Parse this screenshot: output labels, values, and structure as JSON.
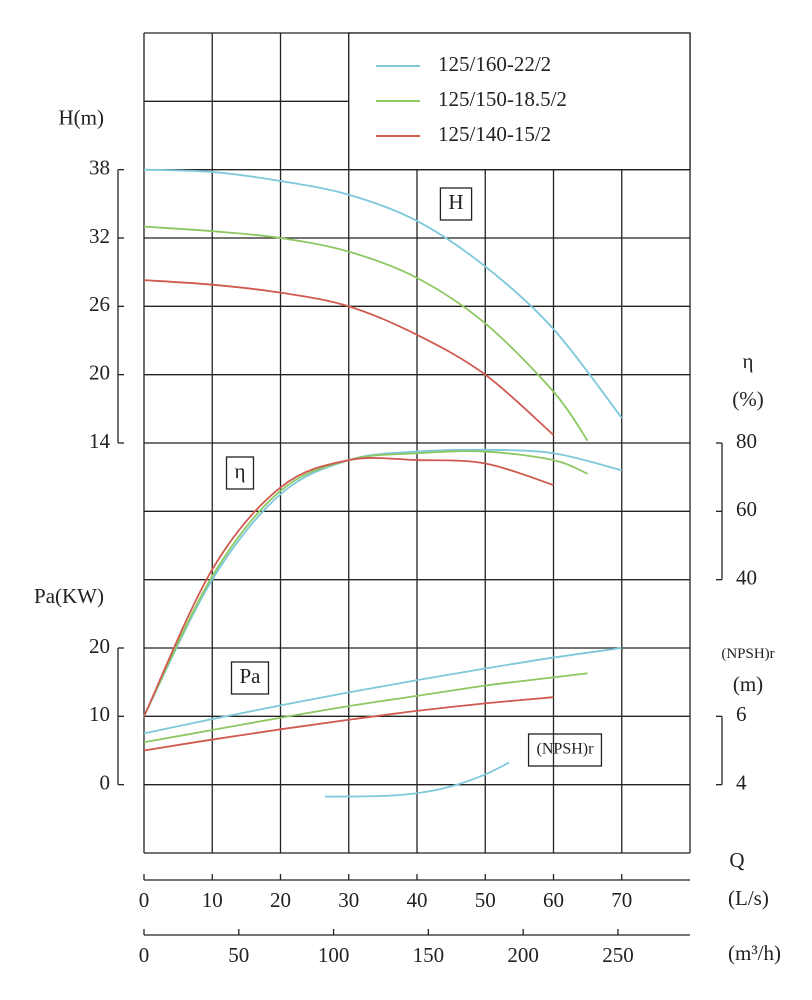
{
  "chart_data": {
    "type": "line",
    "x_axis": {
      "label": "Q",
      "unit": "(L/s)",
      "lim": [
        0,
        80
      ],
      "ticks": [
        0,
        10,
        20,
        30,
        40,
        50,
        60,
        70
      ]
    },
    "x2_axis": {
      "unit": "(m³/h)",
      "lim": [
        0,
        288
      ],
      "ticks": [
        0,
        50,
        100,
        150,
        200,
        250
      ]
    },
    "axes": {
      "H": {
        "label": "H(m)",
        "curve_label": "H",
        "side": "left",
        "lim": [
          14,
          38
        ],
        "ticks": [
          14,
          20,
          26,
          32,
          38
        ]
      },
      "eta": {
        "label": "η",
        "unit": "(%)",
        "curve_label": "η",
        "side": "right",
        "lim": [
          40,
          80
        ],
        "ticks": [
          40,
          60,
          80
        ]
      },
      "Pa": {
        "label": "Pa(KW)",
        "curve_label": "Pa",
        "side": "left",
        "lim": [
          0,
          20
        ],
        "ticks": [
          0,
          10,
          20
        ]
      },
      "NPSH": {
        "label": "(NPSH)r",
        "unit": "(m)",
        "curve_label": "(NPSH)r",
        "side": "right",
        "lim": [
          4,
          6
        ],
        "ticks": [
          4,
          6
        ]
      }
    },
    "series": [
      {
        "name": "125/160-22/2",
        "color": "#7ec8dc",
        "curves": {
          "H": {
            "x": [
              0,
              10,
              20,
              30,
              40,
              50,
              60,
              70
            ],
            "values": [
              38,
              37.8,
              37,
              35.8,
              33.5,
              29.5,
              24,
              16.2
            ]
          },
          "eta": {
            "x": [
              0,
              10,
              20,
              30,
              40,
              50,
              60,
              70
            ],
            "values": [
              0,
              40,
              65,
              75,
              77.5,
              78,
              77,
              72
            ]
          },
          "Pa": {
            "x": [
              0,
              10,
              20,
              30,
              40,
              50,
              60,
              70
            ],
            "values": [
              7.5,
              9.6,
              11.6,
              13.5,
              15.3,
              17,
              18.6,
              20
            ]
          },
          "NPSH": {
            "x": [
              26.5,
              35,
              40,
              45,
              50,
              53.5
            ],
            "values": [
              3.65,
              3.67,
              3.75,
              3.95,
              4.3,
              4.65
            ]
          }
        }
      },
      {
        "name": "125/150-18.5/2",
        "color": "#8cc860",
        "curves": {
          "H": {
            "x": [
              0,
              10,
              20,
              30,
              40,
              50,
              60,
              65
            ],
            "values": [
              33,
              32.6,
              32,
              30.8,
              28.5,
              24.5,
              18.5,
              14.2
            ]
          },
          "eta": {
            "x": [
              0,
              10,
              20,
              30,
              40,
              50,
              60,
              65
            ],
            "values": [
              0,
              41,
              66,
              75,
              77,
              77.5,
              75,
              71
            ]
          },
          "Pa": {
            "x": [
              0,
              10,
              20,
              30,
              40,
              50,
              60,
              65
            ],
            "values": [
              6.2,
              8,
              9.8,
              11.5,
              13,
              14.5,
              15.7,
              16.3
            ]
          }
        }
      },
      {
        "name": "125/140-15/2",
        "color": "#d05a50",
        "curves": {
          "H": {
            "x": [
              0,
              10,
              20,
              30,
              40,
              50,
              60
            ],
            "values": [
              28.3,
              27.9,
              27.2,
              26,
              23.5,
              20,
              14.7
            ]
          },
          "eta": {
            "x": [
              0,
              10,
              20,
              30,
              40,
              50,
              60
            ],
            "values": [
              0,
              43,
              67,
              75,
              75,
              74,
              67.7
            ]
          },
          "Pa": {
            "x": [
              0,
              10,
              20,
              30,
              40,
              50,
              60
            ],
            "values": [
              5,
              6.6,
              8.1,
              9.5,
              10.8,
              11.9,
              12.8
            ]
          }
        }
      }
    ]
  }
}
